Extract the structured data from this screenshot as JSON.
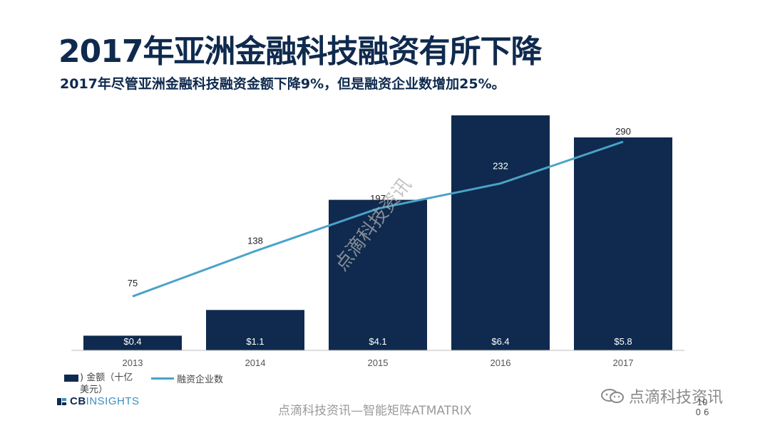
{
  "title": "2017年亚洲金融科技融资有所下降",
  "subtitle": "2017年尽管亚洲金融科技融资金额下降9%，但是融资企业数增加25%。",
  "chart_data": {
    "type": "bar",
    "categories": [
      "2013",
      "2014",
      "2015",
      "2016",
      "2017"
    ],
    "series": [
      {
        "name": "金额（十亿美元）",
        "type": "bar",
        "values": [
          0.4,
          1.1,
          4.1,
          6.4,
          5.8
        ],
        "labels": [
          "$0.4",
          "$1.1",
          "$4.1",
          "$6.4",
          "$5.8"
        ],
        "color": "#0f2a4e"
      },
      {
        "name": "融资企业数",
        "type": "line",
        "values": [
          75,
          138,
          197,
          232,
          290
        ],
        "labels": [
          "75",
          "138",
          "197",
          "232",
          "290"
        ],
        "color": "#4aa3c8"
      }
    ],
    "ylim_bar": [
      0,
      7
    ],
    "ylim_line": [
      0,
      400
    ],
    "grid": false,
    "legend": "bottom-left"
  },
  "legend": {
    "bar_label": ") 金额（十亿美元）",
    "line_label": "融资企业数"
  },
  "logo": {
    "cb": "CB",
    "insights": "INSIGHTS"
  },
  "watermarks": {
    "diagonal": "点滴科技资讯",
    "bottom": "点滴科技资讯—智能矩阵ATMATRIX",
    "right": "点滴科技资讯"
  },
  "page_number": "10 0 6",
  "colors": {
    "navy": "#0f2a4e",
    "line": "#4aa3c8",
    "axis": "#bfbfbf"
  }
}
